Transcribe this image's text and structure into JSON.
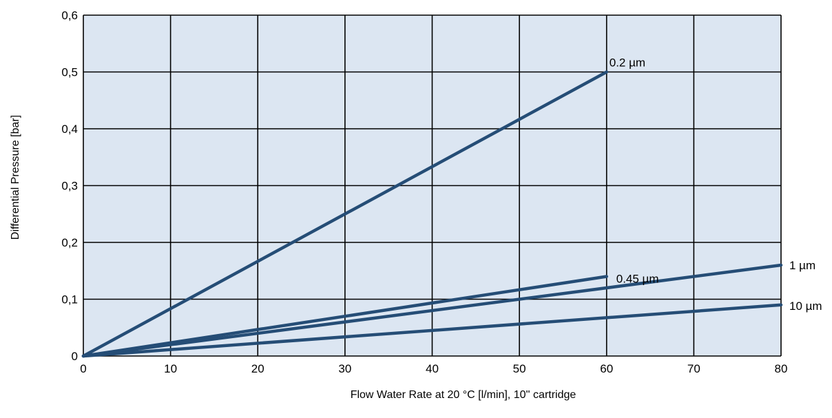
{
  "chart_data": {
    "type": "line",
    "title": "",
    "xlabel": "Flow Water Rate at 20 °C [l/min], 10'' cartridge",
    "ylabel": "Differential Pressure [bar]",
    "xlim": [
      0,
      80
    ],
    "ylim": [
      0,
      0.6
    ],
    "x_ticks": [
      0,
      10,
      20,
      30,
      40,
      50,
      60,
      70,
      80
    ],
    "x_tick_labels": [
      "0",
      "10",
      "20",
      "30",
      "40",
      "50",
      "60",
      "70",
      "80"
    ],
    "y_ticks": [
      0,
      0.1,
      0.2,
      0.3,
      0.4,
      0.5,
      0.6
    ],
    "y_tick_labels": [
      "0",
      "0,1",
      "0,2",
      "0,3",
      "0,4",
      "0,5",
      "0,6"
    ],
    "grid": true,
    "plot_background": "#dce6f2",
    "series_color": "#254d76",
    "series": [
      {
        "name": "0.2 µm",
        "x": [
          0,
          60
        ],
        "y": [
          0,
          0.5
        ]
      },
      {
        "name": "0.45 µm",
        "x": [
          0,
          60
        ],
        "y": [
          0,
          0.14
        ]
      },
      {
        "name": "1 µm",
        "x": [
          0,
          80
        ],
        "y": [
          0,
          0.16
        ]
      },
      {
        "name": "10 µm",
        "x": [
          0,
          80
        ],
        "y": [
          0,
          0.09
        ]
      }
    ]
  }
}
